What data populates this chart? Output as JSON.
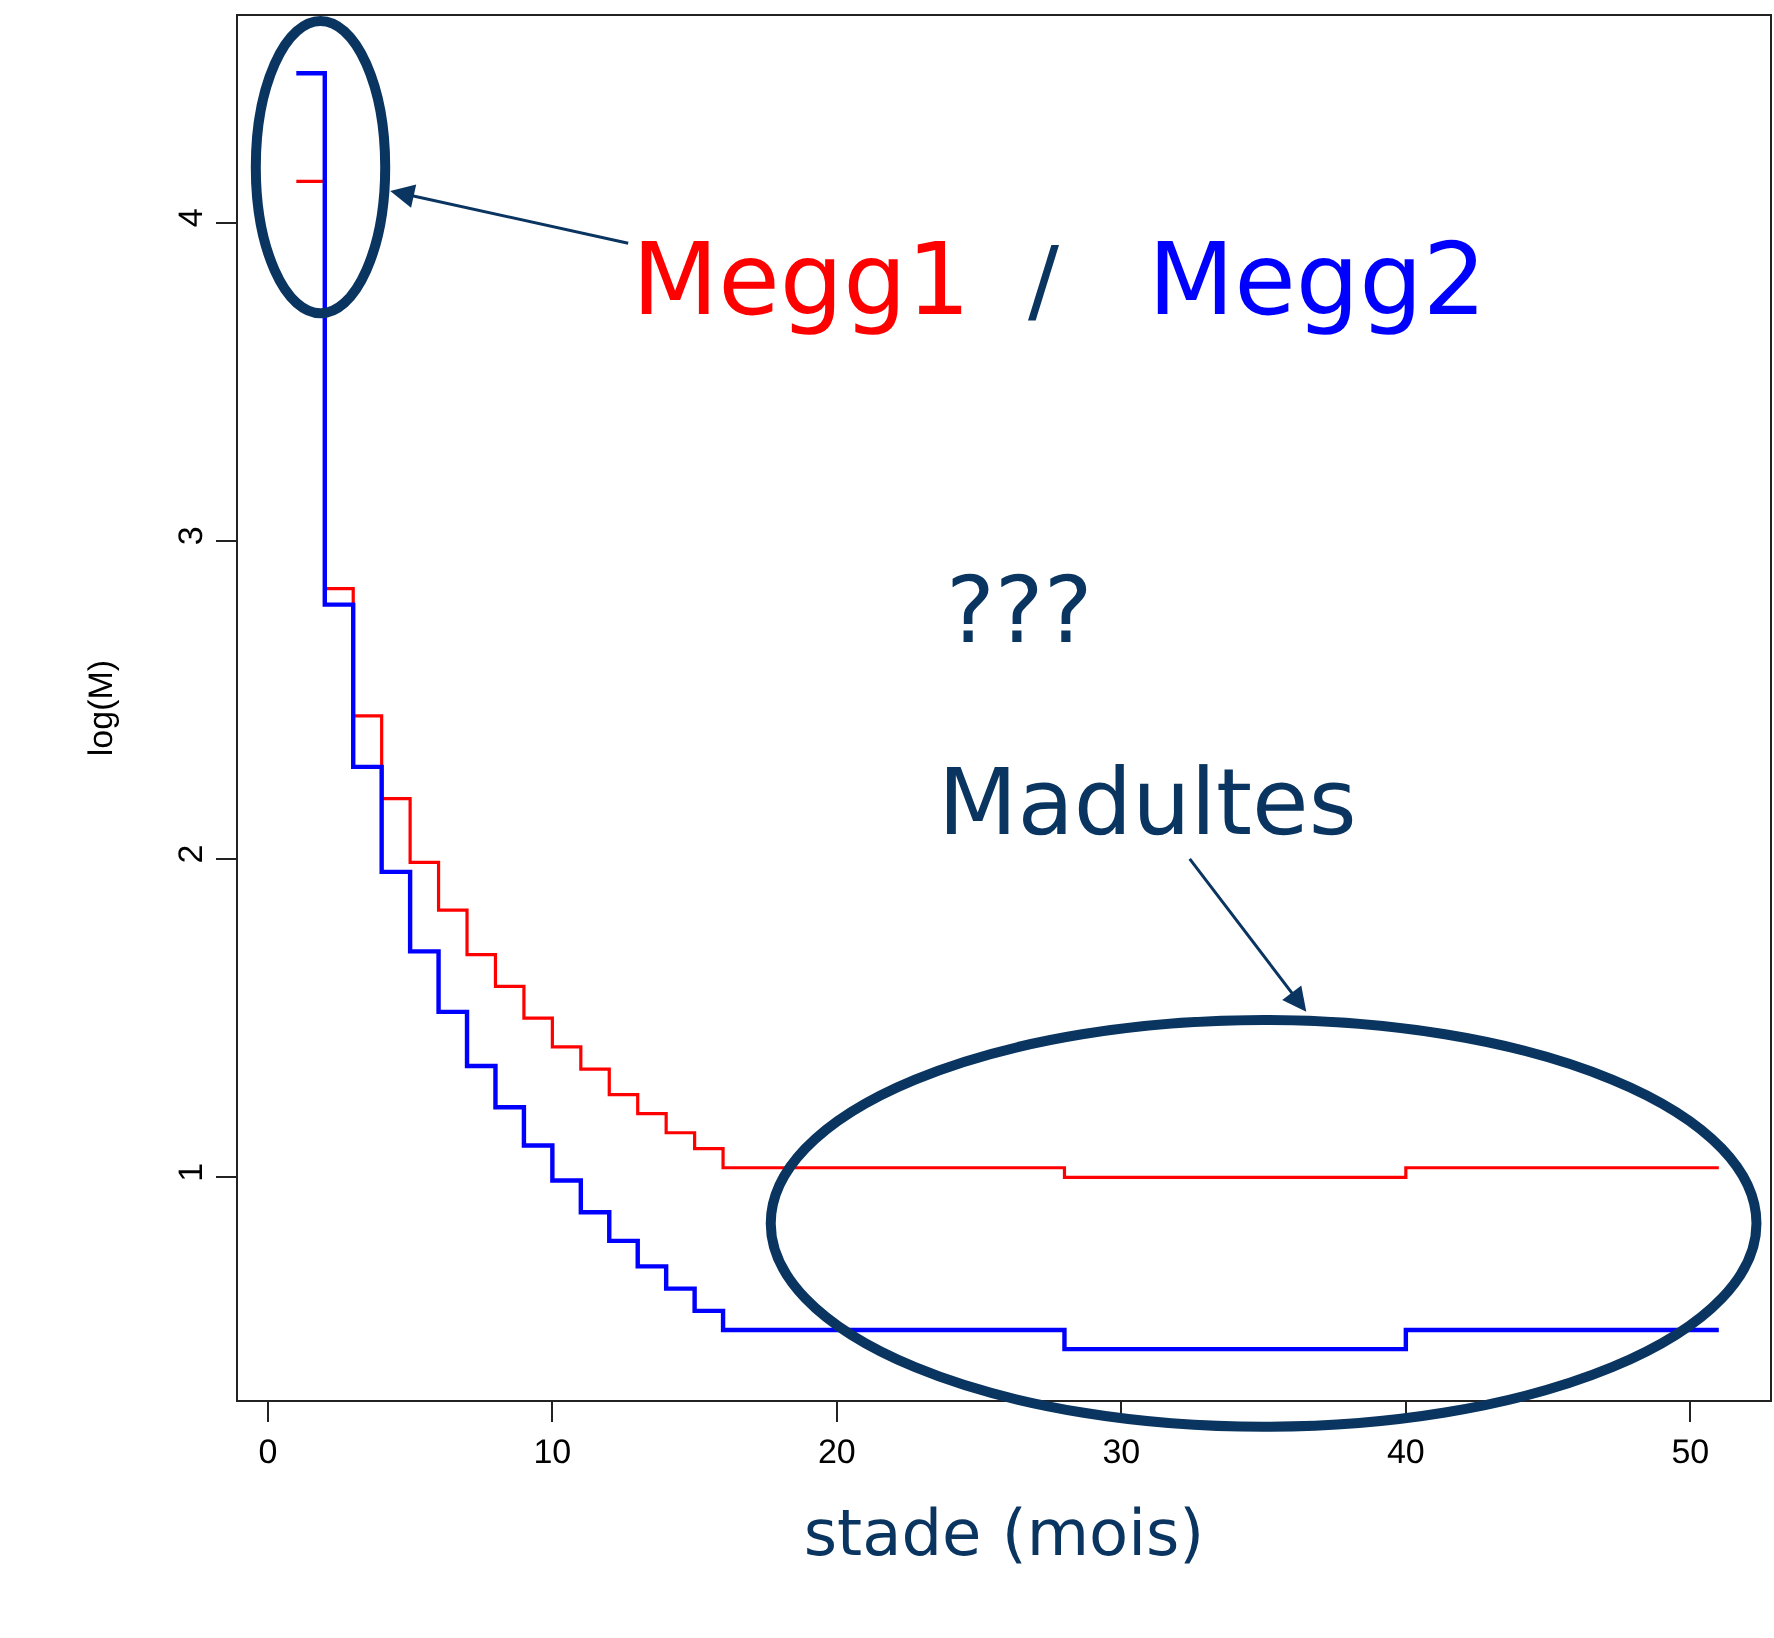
{
  "chart_data": {
    "type": "step",
    "xlabel": "stade (mois)",
    "ylabel": "log(M)",
    "x": [
      1,
      2,
      3,
      4,
      5,
      6,
      7,
      8,
      9,
      10,
      11,
      12,
      13,
      14,
      15,
      16,
      28,
      40,
      51
    ],
    "series": [
      {
        "name": "Megg1",
        "color": "#ff0000",
        "values": [
          4.13,
          2.85,
          2.45,
          2.19,
          1.99,
          1.84,
          1.7,
          1.6,
          1.5,
          1.41,
          1.34,
          1.26,
          1.2,
          1.14,
          1.09,
          1.03,
          1.0,
          1.03,
          1.03
        ]
      },
      {
        "name": "Megg2",
        "color": "#0000ff",
        "values": [
          4.47,
          2.8,
          2.29,
          1.96,
          1.71,
          1.52,
          1.35,
          1.22,
          1.1,
          0.99,
          0.89,
          0.8,
          0.72,
          0.65,
          0.58,
          0.52,
          0.46,
          0.52,
          0.52
        ]
      }
    ],
    "xlim": [
      -1.05,
      52.8
    ],
    "ylim": [
      0.3,
      4.65
    ],
    "xticks": [
      0,
      10,
      20,
      30,
      40,
      50
    ],
    "yticks": [
      1,
      2,
      3,
      4
    ],
    "annotations": [
      "/",
      "???",
      "Madultes"
    ],
    "grid": false,
    "legend": false
  }
}
